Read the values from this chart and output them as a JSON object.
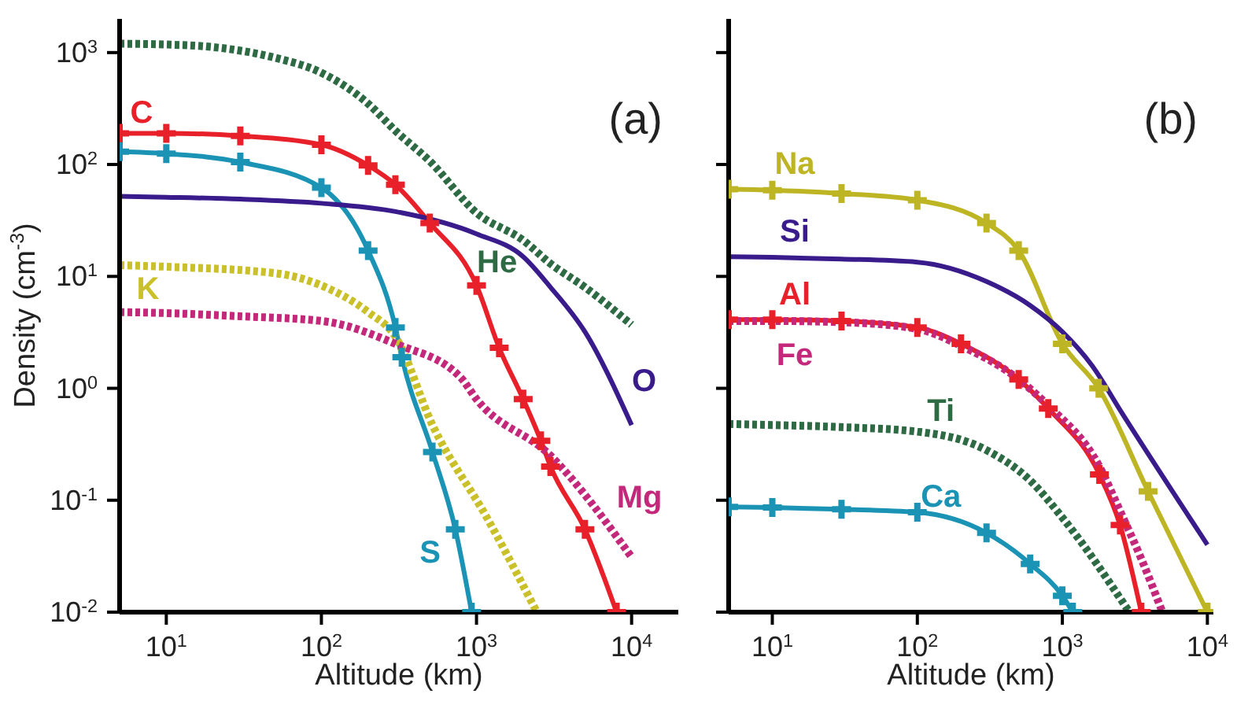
{
  "chart_data": [
    {
      "type": "line",
      "xlabel": "Altitude (km)",
      "ylabel": "Density (cm$^{-3}$)",
      "log": "xy",
      "xlim": [
        5,
        20000
      ],
      "ylim": [
        0.01,
        2000
      ],
      "xticks": [
        {
          "value": 10,
          "label": "10$^{1}$"
        },
        {
          "value": 100,
          "label": "10$^{2}$"
        },
        {
          "value": 1000,
          "label": "10$^{3}$"
        },
        {
          "value": 10000,
          "label": "10$^{4}$"
        }
      ],
      "yticks": [
        {
          "value": 0.01,
          "label": "10$^{-2}$"
        },
        {
          "value": 0.1,
          "label": "10$^{-1}$"
        },
        {
          "value": 1,
          "label": "10$^{0}$"
        },
        {
          "value": 10,
          "label": "10$^{1}$"
        },
        {
          "value": 100,
          "label": "10$^{2}$"
        },
        {
          "value": 1000,
          "label": "10$^{3}$"
        }
      ],
      "annotations": [
        "(a)"
      ],
      "grid": false,
      "legend": false,
      "series": [
        {
          "name": "He",
          "color": "#2e6b45",
          "line_style": "dotted",
          "marker": "none",
          "x": [
            5,
            10,
            20,
            50,
            100,
            200,
            300,
            500,
            1000,
            2000,
            3000,
            5000,
            10000
          ],
          "values": [
            1200,
            1180,
            1120,
            900,
            660,
            350,
            200,
            107,
            37,
            21,
            13,
            8,
            3.7
          ]
        },
        {
          "name": "C",
          "color": "#e8202a",
          "line_style": "solid",
          "marker": "cross",
          "x": [
            5,
            10,
            30,
            100,
            200,
            300,
            500,
            1000,
            1400,
            2000,
            2600,
            3000,
            5000,
            8000
          ],
          "values": [
            190,
            190,
            180,
            150,
            98,
            66,
            30,
            8.3,
            2.3,
            0.8,
            0.34,
            0.2,
            0.055,
            0.01
          ]
        },
        {
          "name": "S",
          "color": "#1a93b5",
          "line_style": "solid",
          "marker": "cross",
          "x": [
            5,
            10,
            30,
            100,
            200,
            300,
            330,
            520,
            730,
            930
          ],
          "values": [
            130,
            125,
            105,
            62,
            17,
            3.5,
            1.9,
            0.27,
            0.055,
            0.01
          ]
        },
        {
          "name": "O",
          "color": "#3a1b8c",
          "line_style": "solid",
          "marker": "none",
          "x": [
            5,
            10,
            30,
            100,
            300,
            1000,
            2000,
            3000,
            5000,
            10000
          ],
          "values": [
            52,
            51,
            49,
            45,
            38,
            24,
            15,
            8,
            3.2,
            0.47
          ]
        },
        {
          "name": "K",
          "color": "#c9c02a",
          "line_style": "dotted",
          "marker": "none",
          "x": [
            5,
            10,
            50,
            100,
            200,
            300,
            520,
            1180,
            2450
          ],
          "values": [
            12.6,
            12.2,
            10.7,
            8.3,
            4.8,
            2.9,
            0.47,
            0.068,
            0.01
          ]
        },
        {
          "name": "Mg",
          "color": "#c4287a",
          "line_style": "dotted",
          "marker": "none",
          "x": [
            5,
            10,
            30,
            100,
            300,
            790,
            1000,
            3000,
            10000
          ],
          "values": [
            4.8,
            4.7,
            4.4,
            4,
            2.5,
            1.25,
            0.8,
            0.25,
            0.031
          ]
        }
      ]
    },
    {
      "type": "line",
      "xlabel": "Altitude (km)",
      "log": "xy",
      "xlim": [
        5,
        11000
      ],
      "ylim": [
        0.01,
        2000
      ],
      "tick_labels": "x",
      "xticks": [
        {
          "value": 10,
          "label": "10$^{1}$"
        },
        {
          "value": 100,
          "label": "10$^{2}$"
        },
        {
          "value": 1000,
          "label": "10$^{3}$"
        },
        {
          "value": 10000,
          "label": "10$^{4}$"
        }
      ],
      "yticks": [
        0.01,
        0.1,
        1,
        10,
        100,
        1000
      ],
      "annotations": [
        "(b)"
      ],
      "grid": false,
      "legend": false,
      "series": [
        {
          "name": "Na",
          "color": "#bdb524",
          "line_style": "solid",
          "marker": "cross",
          "x": [
            5,
            10,
            30,
            100,
            300,
            500,
            1000,
            1780,
            3900,
            10000
          ],
          "values": [
            60,
            59,
            55,
            48,
            30,
            17,
            2.5,
            1,
            0.12,
            0.01
          ]
        },
        {
          "name": "Si",
          "color": "#3a1b8c",
          "line_style": "solid",
          "marker": "none",
          "x": [
            5,
            10,
            30,
            100,
            300,
            600,
            1000,
            1600,
            2600,
            10000
          ],
          "values": [
            15,
            14.8,
            14.3,
            13.4,
            9,
            5.5,
            3.2,
            1.6,
            0.59,
            0.04
          ]
        },
        {
          "name": "Al",
          "color": "#e8202a",
          "line_style": "solid",
          "marker": "cross",
          "x": [
            5,
            10,
            30,
            100,
            200,
            500,
            800,
            1800,
            2500,
            3500
          ],
          "values": [
            4.1,
            4.1,
            4,
            3.5,
            2.5,
            1.2,
            0.66,
            0.17,
            0.06,
            0.01
          ]
        },
        {
          "name": "Fe",
          "color": "#c4287a",
          "line_style": "dotted",
          "marker": "none",
          "x": [
            5,
            10,
            30,
            100,
            200,
            500,
            800,
            1800,
            2500,
            3500,
            4900
          ],
          "values": [
            4,
            4,
            3.9,
            3.4,
            2.4,
            1.2,
            0.7,
            0.2,
            0.08,
            0.03,
            0.01
          ]
        },
        {
          "name": "Ti",
          "color": "#2e6b45",
          "line_style": "dotted",
          "marker": "none",
          "x": [
            5,
            10,
            30,
            100,
            300,
            600,
            1000,
            2900
          ],
          "values": [
            0.48,
            0.47,
            0.45,
            0.41,
            0.28,
            0.15,
            0.07,
            0.01
          ]
        },
        {
          "name": "Ca",
          "color": "#1a93b5",
          "line_style": "solid",
          "marker": "cross",
          "x": [
            5,
            10,
            30,
            100,
            300,
            600,
            1000,
            1180
          ],
          "values": [
            0.087,
            0.086,
            0.083,
            0.078,
            0.051,
            0.027,
            0.014,
            0.01
          ]
        }
      ]
    }
  ]
}
